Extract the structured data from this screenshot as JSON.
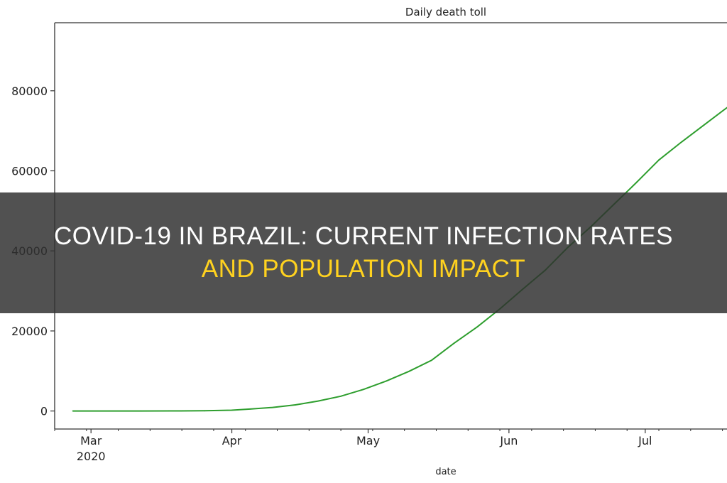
{
  "chart_data": {
    "type": "line",
    "title": "Daily death toll",
    "xlabel": "date",
    "ylabel": "",
    "x": [
      "2020-02-26",
      "2020-03-05",
      "2020-03-12",
      "2020-03-19",
      "2020-03-26",
      "2020-04-01",
      "2020-04-05",
      "2020-04-10",
      "2020-04-15",
      "2020-04-20",
      "2020-04-25",
      "2020-04-30",
      "2020-05-05",
      "2020-05-10",
      "2020-05-15",
      "2020-05-20",
      "2020-05-25",
      "2020-05-30",
      "2020-06-04",
      "2020-06-09",
      "2020-06-14",
      "2020-06-19",
      "2020-06-24",
      "2020-06-29",
      "2020-07-04",
      "2020-07-09",
      "2020-07-14",
      "2020-07-19"
    ],
    "values": [
      0,
      0,
      0,
      30,
      60,
      200,
      480,
      900,
      1530,
      2500,
      3700,
      5400,
      7500,
      9900,
      12700,
      17000,
      21000,
      25500,
      30400,
      35200,
      40900,
      46000,
      51500,
      57000,
      62700,
      67200,
      71500,
      75800
    ],
    "line_color": "#2e9e2e",
    "xlim": [
      "2020-02-22",
      "2020-07-19"
    ],
    "ylim": [
      -4500,
      97000
    ],
    "xticks": [
      {
        "date": "2020-03-01",
        "label": "Mar",
        "sublabel": "2020"
      },
      {
        "date": "2020-04-01",
        "label": "Apr",
        "sublabel": ""
      },
      {
        "date": "2020-05-01",
        "label": "May",
        "sublabel": ""
      },
      {
        "date": "2020-06-01",
        "label": "Jun",
        "sublabel": ""
      },
      {
        "date": "2020-07-01",
        "label": "Jul",
        "sublabel": ""
      }
    ],
    "yticks": [
      0,
      20000,
      40000,
      60000,
      80000
    ],
    "grid": false
  },
  "banner": {
    "line1": "COVID-19 IN BRAZIL: CURRENT INFECTION RATES",
    "line2": "AND POPULATION IMPACT",
    "line1_color": "#ffffff",
    "line2_color": "#ffd21f"
  }
}
